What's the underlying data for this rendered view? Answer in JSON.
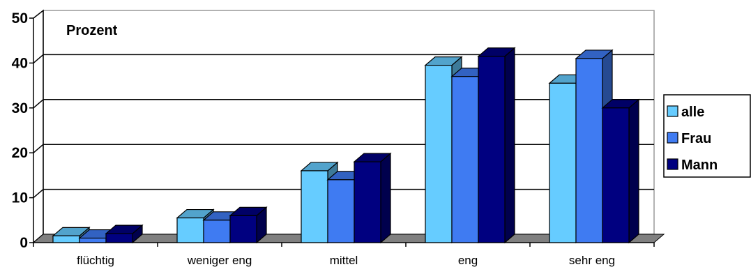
{
  "chart_data": {
    "type": "bar",
    "title": "",
    "unit_label": "Prozent",
    "categories": [
      "flüchtig",
      "weniger eng",
      "mittel",
      "eng",
      "sehr eng"
    ],
    "series": [
      {
        "name": "alle",
        "color": "#66CCFF",
        "values": [
          1.5,
          5.5,
          16,
          39.5,
          35.5
        ]
      },
      {
        "name": "Frau",
        "color": "#3F7BF2",
        "values": [
          1,
          5,
          14,
          37,
          41
        ]
      },
      {
        "name": "Mann",
        "color": "#000080",
        "values": [
          2,
          6,
          18,
          41.5,
          30
        ]
      }
    ],
    "ylim": [
      0,
      50
    ],
    "yticks": [
      "0",
      "10",
      "20",
      "30",
      "40",
      "50"
    ],
    "grid": true,
    "legend": "right",
    "style": "3d-clustered-column"
  }
}
